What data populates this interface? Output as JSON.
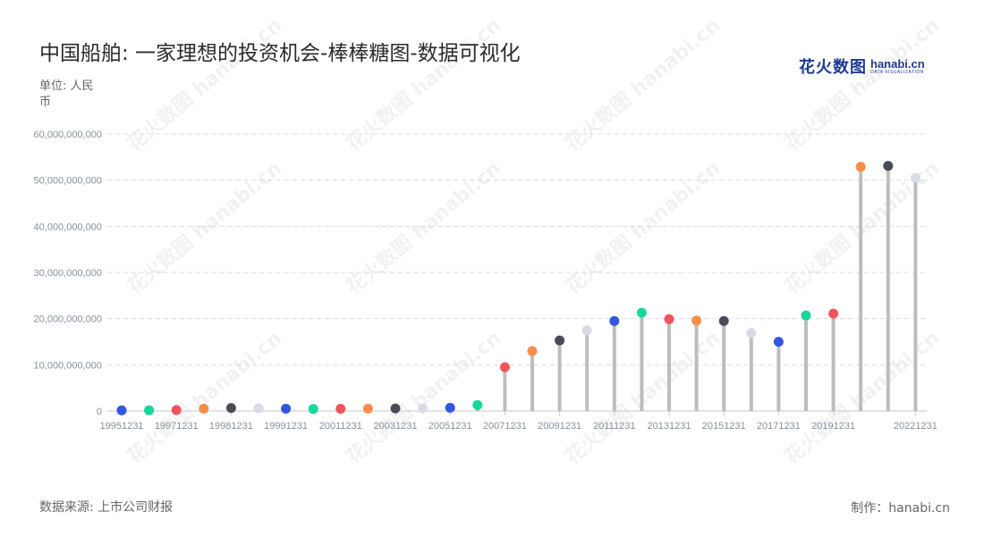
{
  "header": {
    "title": "中国船舶: 一家理想的投资机会-棒棒糖图-数据可视化",
    "logo_cn": "花火数图",
    "logo_en": "hanabi.cn",
    "logo_sub": "DATA VISUALIZATION"
  },
  "unit_label": "单位: 人民币",
  "footer": {
    "source": "数据来源: 上市公司财报",
    "credit": "制作：hanabi.cn"
  },
  "watermark_text": "花火数图 hanabi.cn",
  "colors": {
    "stem": "#bdbdbd",
    "grid": "#dcdcdc",
    "palette": [
      "#3355e0",
      "#19d69a",
      "#f2545b",
      "#fb8c4a",
      "#4a4b57",
      "#d8dce6"
    ]
  },
  "chart_data": {
    "type": "lollipop",
    "x": [
      "19951231",
      "19961231",
      "19971231",
      "19981231 ",
      "19981231",
      "19991231 ",
      "19991231",
      "20001231",
      "20011231",
      "20021231",
      "20031231",
      "20041231",
      "20051231",
      "20061231",
      "20071231",
      "20081231",
      "20091231",
      "20101231",
      "20111231",
      "20121231",
      "20131231",
      "20141231",
      "20151231",
      "20161231",
      "20171231",
      "20181231",
      "20191231",
      "20201231",
      "20211231",
      "20221231"
    ],
    "x_tick_labels": [
      "19951231",
      "19971231",
      "19981231",
      "19991231",
      "20011231",
      "20031231",
      "20051231",
      "20071231",
      "20091231",
      "20111231",
      "20131231",
      "20151231",
      "20171231",
      "20191231",
      "20221231"
    ],
    "values": [
      150000000,
      180000000,
      220000000,
      520000000,
      650000000,
      600000000,
      520000000,
      450000000,
      480000000,
      500000000,
      560000000,
      620000000,
      700000000,
      1300000000,
      9500000000,
      13000000000,
      15300000000,
      17500000000,
      19500000000,
      21300000000,
      19900000000,
      19600000000,
      19500000000,
      16900000000,
      15000000000,
      20700000000,
      21100000000,
      52900000000,
      53100000000,
      50500000000
    ],
    "y_ticks": [
      "0",
      "10,000,000,000",
      "20,000,000,000",
      "30,000,000,000",
      "40,000,000,000",
      "50,000,000,000",
      "60,000,000,000"
    ],
    "ylim": [
      0,
      60000000000
    ],
    "grid": true
  }
}
